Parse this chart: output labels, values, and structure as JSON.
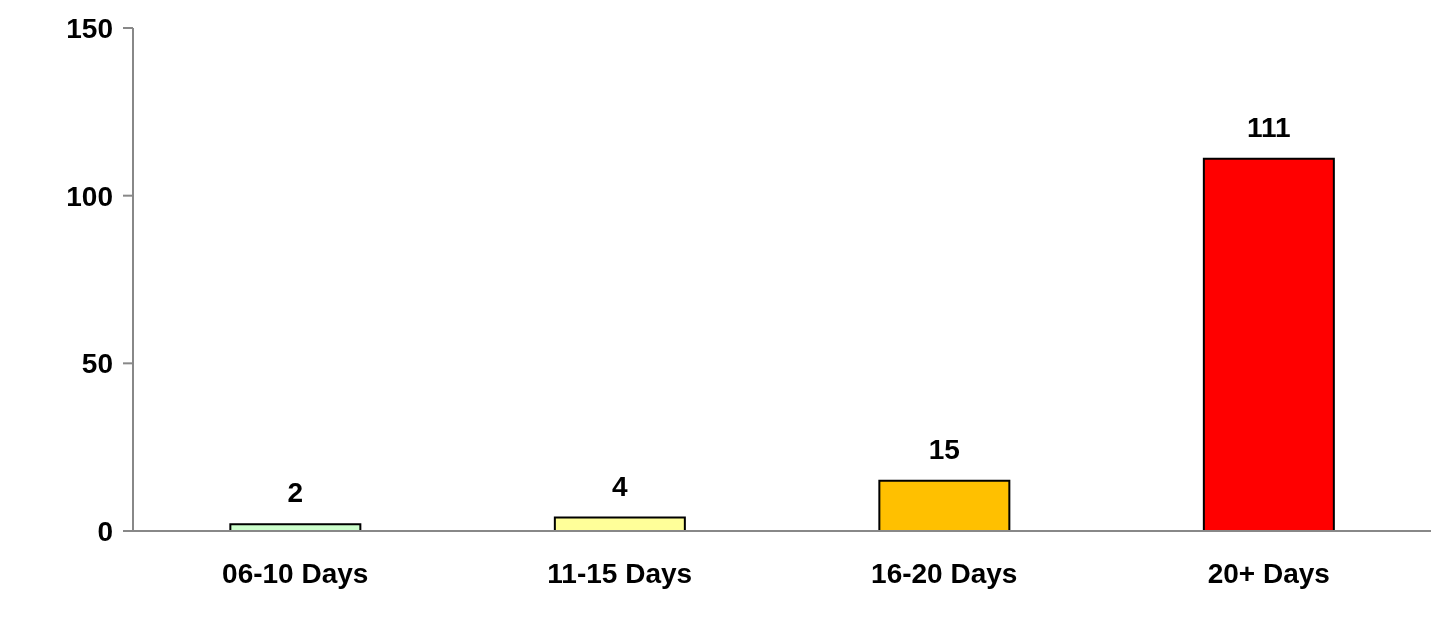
{
  "chart_data": {
    "type": "bar",
    "categories": [
      "06-10 Days",
      "11-15 Days",
      "16-20 Days",
      "20+ Days"
    ],
    "values": [
      2,
      4,
      15,
      111
    ],
    "colors": [
      "#ccffcc",
      "#ffff99",
      "#ffc000",
      "#ff0000"
    ],
    "ylim": [
      0,
      150
    ],
    "yticks": [
      0,
      50,
      100,
      150
    ],
    "grid": false,
    "data_labels": true
  }
}
